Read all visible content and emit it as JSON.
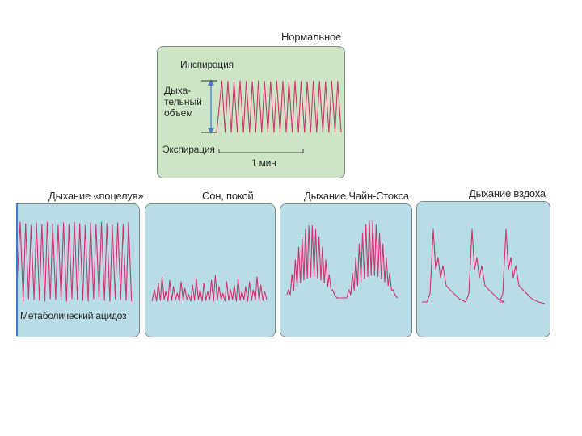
{
  "colors": {
    "trace": "#d4336e",
    "normal_panel_bg": "#cde5c5",
    "pattern_panel_bg": "#b9dde6",
    "axis": "#4a7fc1",
    "scale": "#444444",
    "edge_strip": "#3b7dc1"
  },
  "normal": {
    "title": "Нормальное",
    "inspiration": "Инспирация",
    "tidal_volume": "Дыха-\nтельный\nобъем",
    "expiration": "Экспирация",
    "scale": "1 мин"
  },
  "patterns": {
    "kussmaul": "Дыхание «поцелуя»",
    "kussmaul_note": "Метаболический ацидоз",
    "sleep": "Сон, покой",
    "cheyne_stokes": "Дыхание Чайн-Стокса",
    "gasping": "Дыхание вздоха"
  },
  "icons": {
    "arrow": "double-arrow-icon"
  }
}
